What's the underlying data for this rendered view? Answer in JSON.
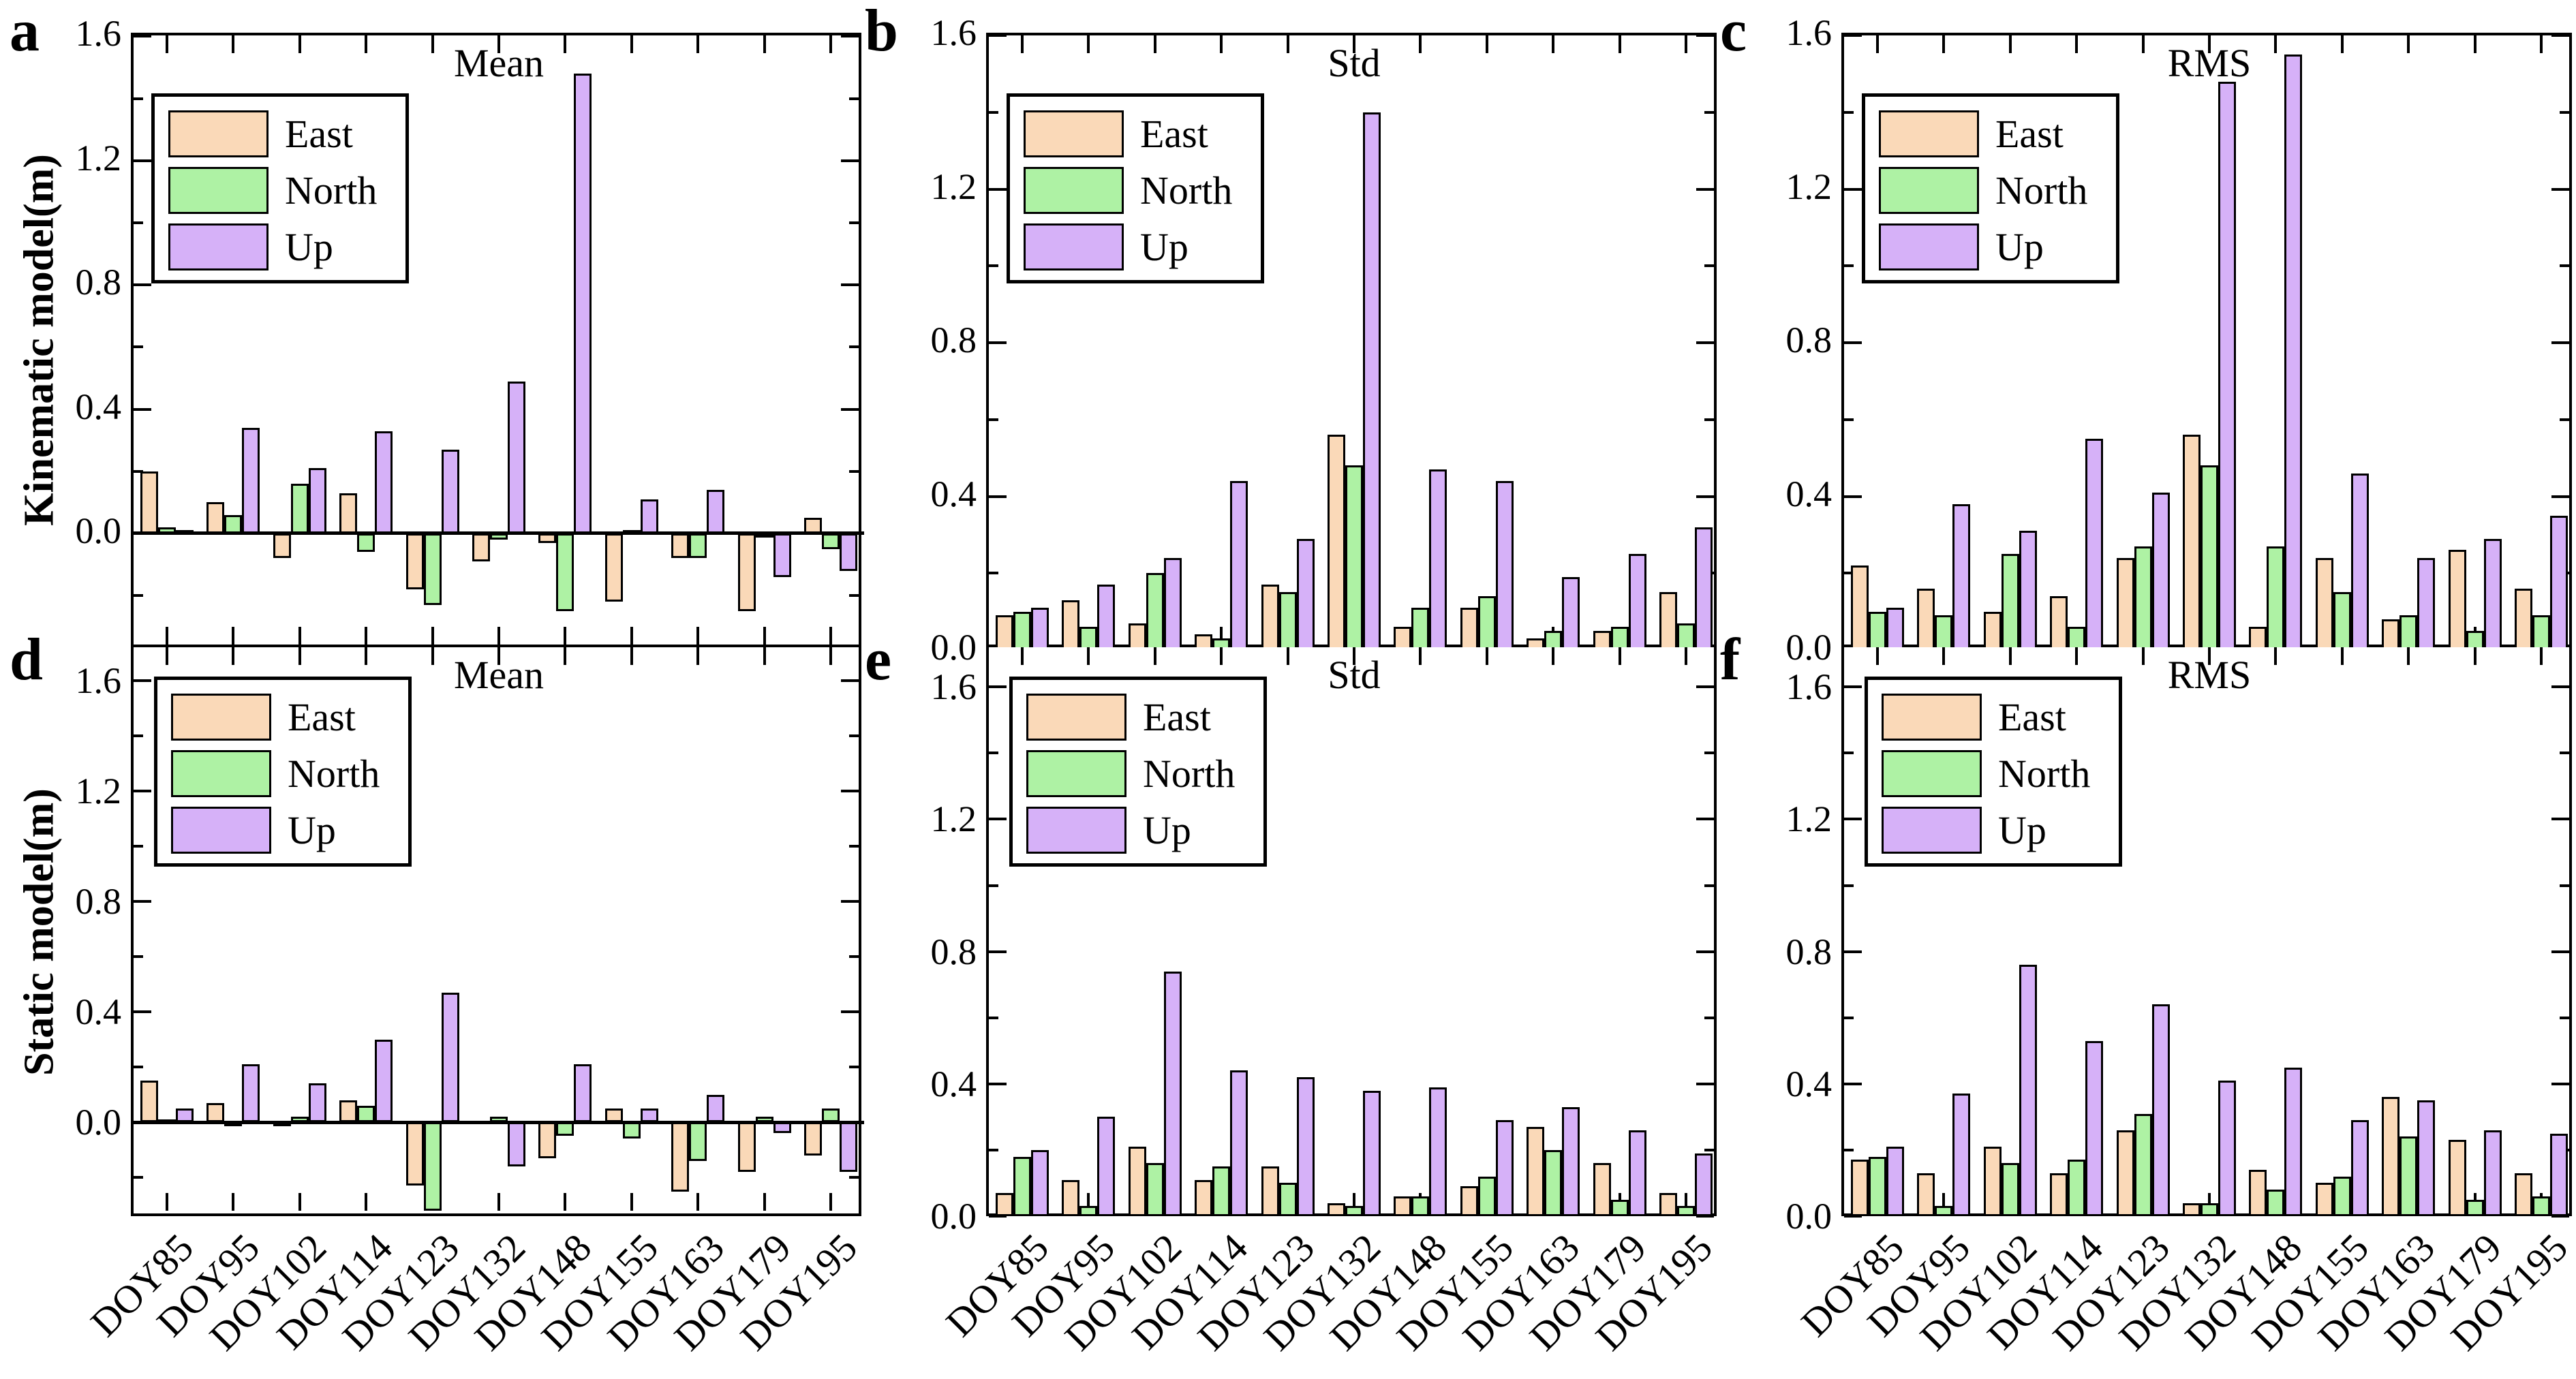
{
  "figure": {
    "row_labels": [
      "Kinematic model(m)",
      "Static model(m)"
    ],
    "ytick_labels": [
      "0.0",
      "0.4",
      "0.8",
      "1.2",
      "1.6"
    ],
    "legend": {
      "entries": [
        {
          "label": "East",
          "color": "#FAD9B8"
        },
        {
          "label": "North",
          "color": "#AEF2A4"
        },
        {
          "label": "Up",
          "color": "#D6B1F8"
        }
      ]
    },
    "colors": {
      "east": "#FAD9B8",
      "north": "#AEF2A4",
      "up": "#D6B1F8",
      "edge": "#000000"
    }
  },
  "chart_data": [
    {
      "type": "bar",
      "panel_letter": "a",
      "title": "Mean",
      "ylabel": "Kinematic model(m)",
      "categories": [
        "DOY85",
        "DOY95",
        "DOY102",
        "DOY114",
        "DOY123",
        "DOY132",
        "DOY148",
        "DOY155",
        "DOY163",
        "DOY179",
        "DOY195"
      ],
      "series": [
        {
          "name": "East",
          "values": [
            0.2,
            0.1,
            -0.08,
            0.13,
            -0.18,
            -0.09,
            -0.03,
            -0.22,
            -0.08,
            -0.25,
            0.05
          ]
        },
        {
          "name": "North",
          "values": [
            0.02,
            0.06,
            0.16,
            -0.06,
            -0.23,
            -0.02,
            -0.25,
            0.01,
            -0.08,
            -0.01,
            -0.05
          ]
        },
        {
          "name": "Up",
          "values": [
            0.01,
            0.34,
            0.21,
            0.33,
            0.27,
            0.49,
            1.48,
            0.11,
            0.14,
            -0.14,
            -0.12
          ]
        }
      ],
      "yticks": [
        0.0,
        0.4,
        0.8,
        1.2,
        1.6
      ],
      "ylim": [
        -0.375,
        1.603
      ],
      "legend_position": "upper left",
      "grid": false
    },
    {
      "type": "bar",
      "panel_letter": "b",
      "title": "Std",
      "ylabel": "",
      "categories": [
        "DOY85",
        "DOY95",
        "DOY102",
        "DOY114",
        "DOY123",
        "DOY132",
        "DOY148",
        "DOY155",
        "DOY163",
        "DOY179",
        "DOY195"
      ],
      "series": [
        {
          "name": "East",
          "values": [
            0.09,
            0.13,
            0.07,
            0.04,
            0.17,
            0.56,
            0.06,
            0.11,
            0.03,
            0.05,
            0.15
          ]
        },
        {
          "name": "North",
          "values": [
            0.1,
            0.06,
            0.2,
            0.03,
            0.15,
            0.48,
            0.11,
            0.14,
            0.05,
            0.06,
            0.07
          ]
        },
        {
          "name": "Up",
          "values": [
            0.11,
            0.17,
            0.24,
            0.44,
            0.29,
            1.4,
            0.47,
            0.44,
            0.19,
            0.25,
            0.32
          ]
        }
      ],
      "yticks": [
        0.0,
        0.4,
        0.8,
        1.2,
        1.6
      ],
      "ylim": [
        0,
        1.6
      ],
      "legend_position": "upper left",
      "grid": false
    },
    {
      "type": "bar",
      "panel_letter": "c",
      "title": "RMS",
      "ylabel": "",
      "categories": [
        "DOY85",
        "DOY95",
        "DOY102",
        "DOY114",
        "DOY123",
        "DOY132",
        "DOY148",
        "DOY155",
        "DOY163",
        "DOY179",
        "DOY195"
      ],
      "series": [
        {
          "name": "East",
          "values": [
            0.22,
            0.16,
            0.1,
            0.14,
            0.24,
            0.56,
            0.06,
            0.24,
            0.08,
            0.26,
            0.16
          ]
        },
        {
          "name": "North",
          "values": [
            0.1,
            0.09,
            0.25,
            0.06,
            0.27,
            0.48,
            0.27,
            0.15,
            0.09,
            0.05,
            0.09
          ]
        },
        {
          "name": "Up",
          "values": [
            0.11,
            0.38,
            0.31,
            0.55,
            0.41,
            1.48,
            1.55,
            0.46,
            0.24,
            0.29,
            0.35
          ]
        }
      ],
      "yticks": [
        0.0,
        0.4,
        0.8,
        1.2,
        1.6
      ],
      "ylim": [
        0,
        1.6
      ],
      "legend_position": "upper left",
      "grid": false
    },
    {
      "type": "bar",
      "panel_letter": "d",
      "title": "Mean",
      "ylabel": "Static model(m)",
      "categories": [
        "DOY85",
        "DOY95",
        "DOY102",
        "DOY114",
        "DOY123",
        "DOY132",
        "DOY148",
        "DOY155",
        "DOY163",
        "DOY179",
        "DOY195"
      ],
      "series": [
        {
          "name": "East",
          "values": [
            0.15,
            0.07,
            -0.01,
            0.08,
            -0.23,
            0.0,
            -0.13,
            0.05,
            -0.25,
            -0.18,
            -0.12
          ]
        },
        {
          "name": "North",
          "values": [
            0.01,
            -0.01,
            0.02,
            0.06,
            -0.32,
            0.02,
            -0.05,
            -0.06,
            -0.14,
            0.02,
            0.05
          ]
        },
        {
          "name": "Up",
          "values": [
            0.05,
            0.21,
            0.14,
            0.3,
            0.47,
            -0.16,
            0.21,
            0.05,
            0.1,
            -0.04,
            -0.18
          ]
        }
      ],
      "yticks": [
        0.0,
        0.4,
        0.8,
        1.2,
        1.6
      ],
      "ylim": [
        -0.34,
        1.72
      ],
      "legend_position": "upper left",
      "grid": false
    },
    {
      "type": "bar",
      "panel_letter": "e",
      "title": "Std",
      "ylabel": "",
      "categories": [
        "DOY85",
        "DOY95",
        "DOY102",
        "DOY114",
        "DOY123",
        "DOY132",
        "DOY148",
        "DOY155",
        "DOY163",
        "DOY179",
        "DOY195"
      ],
      "series": [
        {
          "name": "East",
          "values": [
            0.07,
            0.11,
            0.21,
            0.11,
            0.15,
            0.04,
            0.06,
            0.09,
            0.27,
            0.16,
            0.07
          ]
        },
        {
          "name": "North",
          "values": [
            0.18,
            0.03,
            0.16,
            0.15,
            0.1,
            0.03,
            0.06,
            0.12,
            0.2,
            0.05,
            0.03
          ]
        },
        {
          "name": "Up",
          "values": [
            0.2,
            0.3,
            0.74,
            0.44,
            0.42,
            0.38,
            0.39,
            0.29,
            0.33,
            0.26,
            0.19
          ]
        }
      ],
      "yticks": [
        0.0,
        0.4,
        0.8,
        1.2,
        1.6
      ],
      "ylim": [
        0,
        1.72
      ],
      "legend_position": "upper left",
      "grid": false
    },
    {
      "type": "bar",
      "panel_letter": "f",
      "title": "RMS",
      "ylabel": "",
      "categories": [
        "DOY85",
        "DOY95",
        "DOY102",
        "DOY114",
        "DOY123",
        "DOY132",
        "DOY148",
        "DOY155",
        "DOY163",
        "DOY179",
        "DOY195"
      ],
      "series": [
        {
          "name": "East",
          "values": [
            0.17,
            0.13,
            0.21,
            0.13,
            0.26,
            0.04,
            0.14,
            0.1,
            0.36,
            0.23,
            0.13
          ]
        },
        {
          "name": "North",
          "values": [
            0.18,
            0.03,
            0.16,
            0.17,
            0.31,
            0.04,
            0.08,
            0.12,
            0.24,
            0.05,
            0.06
          ]
        },
        {
          "name": "Up",
          "values": [
            0.21,
            0.37,
            0.76,
            0.53,
            0.64,
            0.41,
            0.45,
            0.29,
            0.35,
            0.26,
            0.25
          ]
        }
      ],
      "yticks": [
        0.0,
        0.4,
        0.8,
        1.2,
        1.6
      ],
      "ylim": [
        0,
        1.72
      ],
      "legend_position": "upper left",
      "grid": false
    }
  ]
}
